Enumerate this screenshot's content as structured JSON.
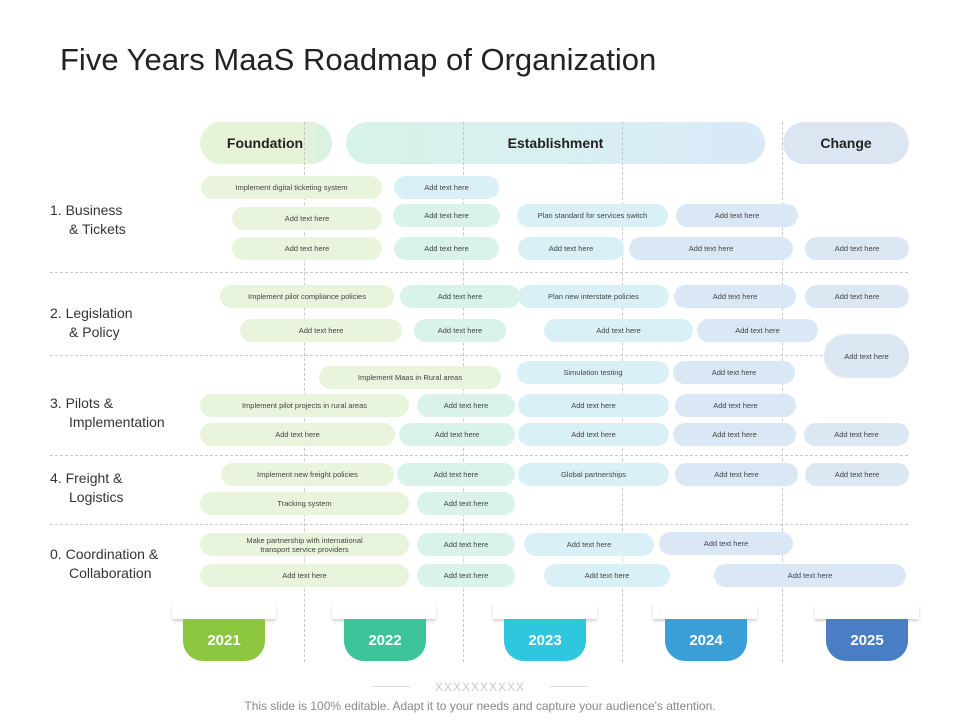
{
  "title": "Five Years MaaS Roadmap of Organization",
  "phases": {
    "foundation": "Foundation",
    "establishment": "Establishment",
    "change": "Change"
  },
  "rows": [
    {
      "num": "1.",
      "line1": "Business",
      "line2": "& Tickets"
    },
    {
      "num": "2.",
      "line1": "Legislation",
      "line2": "& Policy"
    },
    {
      "num": "3.",
      "line1": "Pilots &",
      "line2": "Implementation"
    },
    {
      "num": "4.",
      "line1": "Freight &",
      "line2": "Logistics"
    },
    {
      "num": "0.",
      "line1": "Coordination &",
      "line2": "Collaboration"
    }
  ],
  "tasks": {
    "r1": [
      "Implement digital ticketing system",
      "Add text here",
      "Add text here",
      "Add text here",
      "Plan standard  for services switch",
      "Add text here",
      "Add text here",
      "Add text here",
      "Add text here",
      "Add text here",
      "Add text here"
    ],
    "r2": [
      "Implement pilot compliance policies",
      "Add text here",
      "Plan new interstate policies",
      "Add text here",
      "Add text here",
      "Add text here",
      "Add text here",
      "Add text here",
      "Add text here",
      "Add text here"
    ],
    "r3": [
      "Implement Maas in Rural areas",
      "Simulation testing",
      "Add text here",
      "Implement pilot projects in rural areas",
      "Add text here",
      "Add text here",
      "Add text here",
      "Add text here",
      "Add text here",
      "Add text here",
      "Add text here",
      "Add text here"
    ],
    "r4": [
      "Implement new freight policies",
      "Add text here",
      "Global partnerships",
      "Add text here",
      "Add text here",
      "Tracking system",
      "Add text here"
    ],
    "r5": [
      "Make partnership  with international",
      "transport service providers",
      "Add text here",
      "Add text here",
      "Add text here",
      "Add text here",
      "Add text here",
      "Add text here",
      "Add text here"
    ]
  },
  "years": [
    "2021",
    "2022",
    "2023",
    "2024",
    "2025"
  ],
  "year_colors": [
    "#8dc63f",
    "#3cc39a",
    "#2ec7dd",
    "#3a9fd6",
    "#4a7ec4"
  ],
  "decoration": "XXXXXXXXXX",
  "footer": "This slide is 100% editable. Adapt it to your needs and capture your audience's attention."
}
